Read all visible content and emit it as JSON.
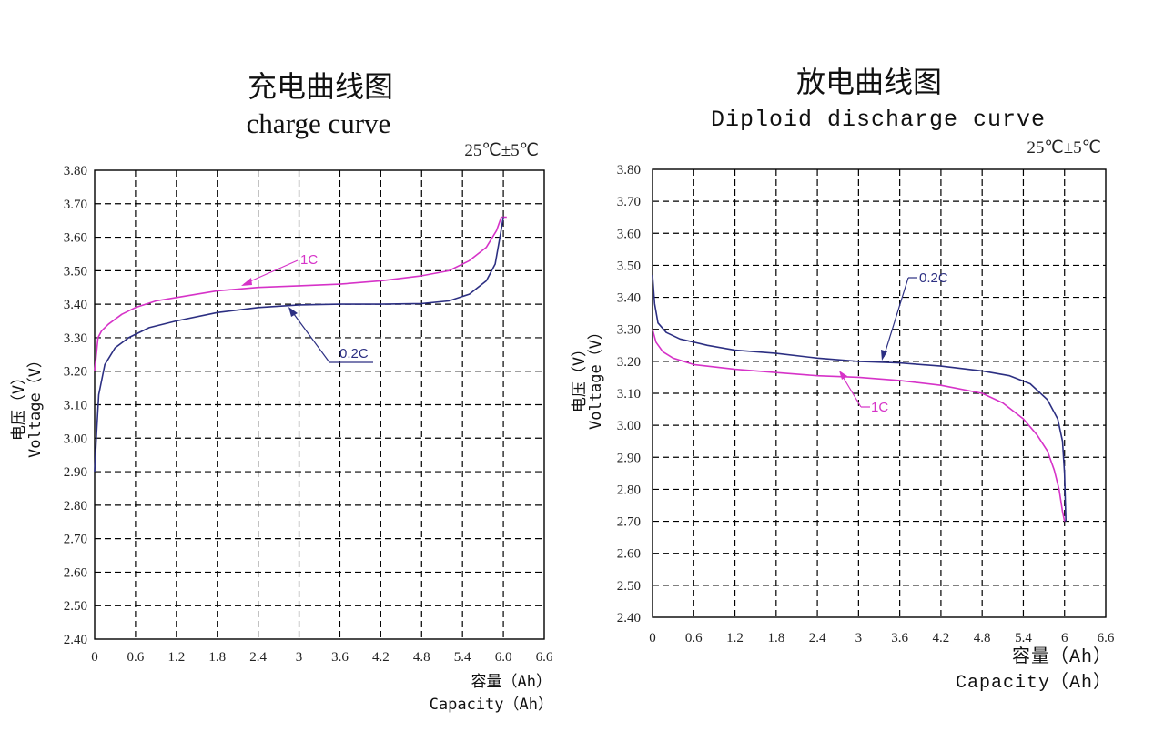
{
  "colors": {
    "c1": "#d633c8",
    "c02": "#2c2f82",
    "grid": "#000000"
  },
  "chart_data": [
    {
      "type": "line",
      "title": "充电曲线图",
      "subtitle": "charge curve",
      "temperature": "25℃±5℃",
      "ylabel_cn": "电压（V）",
      "ylabel_en": "Voltage（V）",
      "xlabel_cn": "容量（Ah）",
      "xlabel_en": "Capacity（Ah）",
      "xticks": [
        "0",
        "0.6",
        "1.2",
        "1.8",
        "2.4",
        "3",
        "3.6",
        "4.2",
        "4.8",
        "5.4",
        "6.0",
        "6.6"
      ],
      "yticks": [
        "2.40",
        "2.50",
        "2.60",
        "2.70",
        "2.80",
        "2.90",
        "3.00",
        "3.10",
        "3.20",
        "3.30",
        "3.40",
        "3.50",
        "3.60",
        "3.70",
        "3.80"
      ],
      "xlim": [
        0,
        6.6
      ],
      "ylim": [
        2.4,
        3.8
      ],
      "grid": true,
      "series": [
        {
          "name": "1C",
          "color": "#d633c8",
          "points": [
            [
              0.0,
              3.2
            ],
            [
              0.05,
              3.3
            ],
            [
              0.1,
              3.32
            ],
            [
              0.2,
              3.34
            ],
            [
              0.4,
              3.37
            ],
            [
              0.6,
              3.39
            ],
            [
              0.9,
              3.41
            ],
            [
              1.2,
              3.42
            ],
            [
              1.8,
              3.44
            ],
            [
              2.4,
              3.45
            ],
            [
              3.0,
              3.455
            ],
            [
              3.6,
              3.46
            ],
            [
              4.2,
              3.47
            ],
            [
              4.8,
              3.485
            ],
            [
              5.2,
              3.5
            ],
            [
              5.5,
              3.53
            ],
            [
              5.75,
              3.57
            ],
            [
              5.9,
              3.62
            ],
            [
              5.97,
              3.66
            ],
            [
              6.05,
              3.66
            ]
          ]
        },
        {
          "name": "0.2C",
          "color": "#2c2f82",
          "points": [
            [
              0.0,
              2.9
            ],
            [
              0.03,
              3.02
            ],
            [
              0.06,
              3.13
            ],
            [
              0.15,
              3.22
            ],
            [
              0.3,
              3.27
            ],
            [
              0.5,
              3.3
            ],
            [
              0.8,
              3.33
            ],
            [
              1.2,
              3.35
            ],
            [
              1.8,
              3.375
            ],
            [
              2.4,
              3.39
            ],
            [
              3.0,
              3.398
            ],
            [
              3.6,
              3.4
            ],
            [
              4.2,
              3.4
            ],
            [
              4.8,
              3.402
            ],
            [
              5.2,
              3.41
            ],
            [
              5.5,
              3.43
            ],
            [
              5.75,
              3.47
            ],
            [
              5.88,
              3.52
            ],
            [
              5.95,
              3.6
            ],
            [
              6.0,
              3.66
            ]
          ]
        }
      ]
    },
    {
      "type": "line",
      "title": "放电曲线图",
      "subtitle": "Diploid discharge curve",
      "temperature": "25℃±5℃",
      "ylabel_cn": "电压（V）",
      "ylabel_en": "Voltage（V）",
      "xlabel_cn": "容量（Ah）",
      "xlabel_en": "Capacity（Ah）",
      "xticks": [
        "0",
        "0.6",
        "1.2",
        "1.8",
        "2.4",
        "3",
        "3.6",
        "4.2",
        "4.8",
        "5.4",
        "6",
        "6.6"
      ],
      "yticks": [
        "2.40",
        "2.50",
        "2.60",
        "2.70",
        "2.80",
        "2.90",
        "3.00",
        "3.10",
        "3.20",
        "3.30",
        "3.40",
        "3.50",
        "3.60",
        "3.70",
        "3.80"
      ],
      "xlim": [
        0,
        6.6
      ],
      "ylim": [
        2.4,
        3.8
      ],
      "grid": true,
      "series": [
        {
          "name": "0.2C",
          "color": "#2c2f82",
          "points": [
            [
              0.0,
              3.47
            ],
            [
              0.03,
              3.38
            ],
            [
              0.08,
              3.32
            ],
            [
              0.2,
              3.29
            ],
            [
              0.4,
              3.27
            ],
            [
              0.8,
              3.25
            ],
            [
              1.2,
              3.235
            ],
            [
              1.8,
              3.225
            ],
            [
              2.4,
              3.21
            ],
            [
              3.0,
              3.2
            ],
            [
              3.6,
              3.195
            ],
            [
              4.2,
              3.185
            ],
            [
              4.8,
              3.17
            ],
            [
              5.2,
              3.155
            ],
            [
              5.5,
              3.13
            ],
            [
              5.75,
              3.08
            ],
            [
              5.9,
              3.02
            ],
            [
              5.97,
              2.95
            ],
            [
              6.0,
              2.85
            ],
            [
              6.02,
              2.7
            ]
          ]
        },
        {
          "name": "1C",
          "color": "#d633c8",
          "points": [
            [
              0.0,
              3.3
            ],
            [
              0.05,
              3.26
            ],
            [
              0.15,
              3.23
            ],
            [
              0.3,
              3.21
            ],
            [
              0.6,
              3.19
            ],
            [
              1.2,
              3.175
            ],
            [
              1.8,
              3.165
            ],
            [
              2.4,
              3.155
            ],
            [
              3.0,
              3.15
            ],
            [
              3.6,
              3.14
            ],
            [
              4.2,
              3.125
            ],
            [
              4.8,
              3.1
            ],
            [
              5.1,
              3.07
            ],
            [
              5.4,
              3.02
            ],
            [
              5.6,
              2.97
            ],
            [
              5.75,
              2.92
            ],
            [
              5.85,
              2.86
            ],
            [
              5.92,
              2.8
            ],
            [
              5.97,
              2.73
            ],
            [
              6.0,
              2.7
            ]
          ]
        }
      ]
    }
  ]
}
